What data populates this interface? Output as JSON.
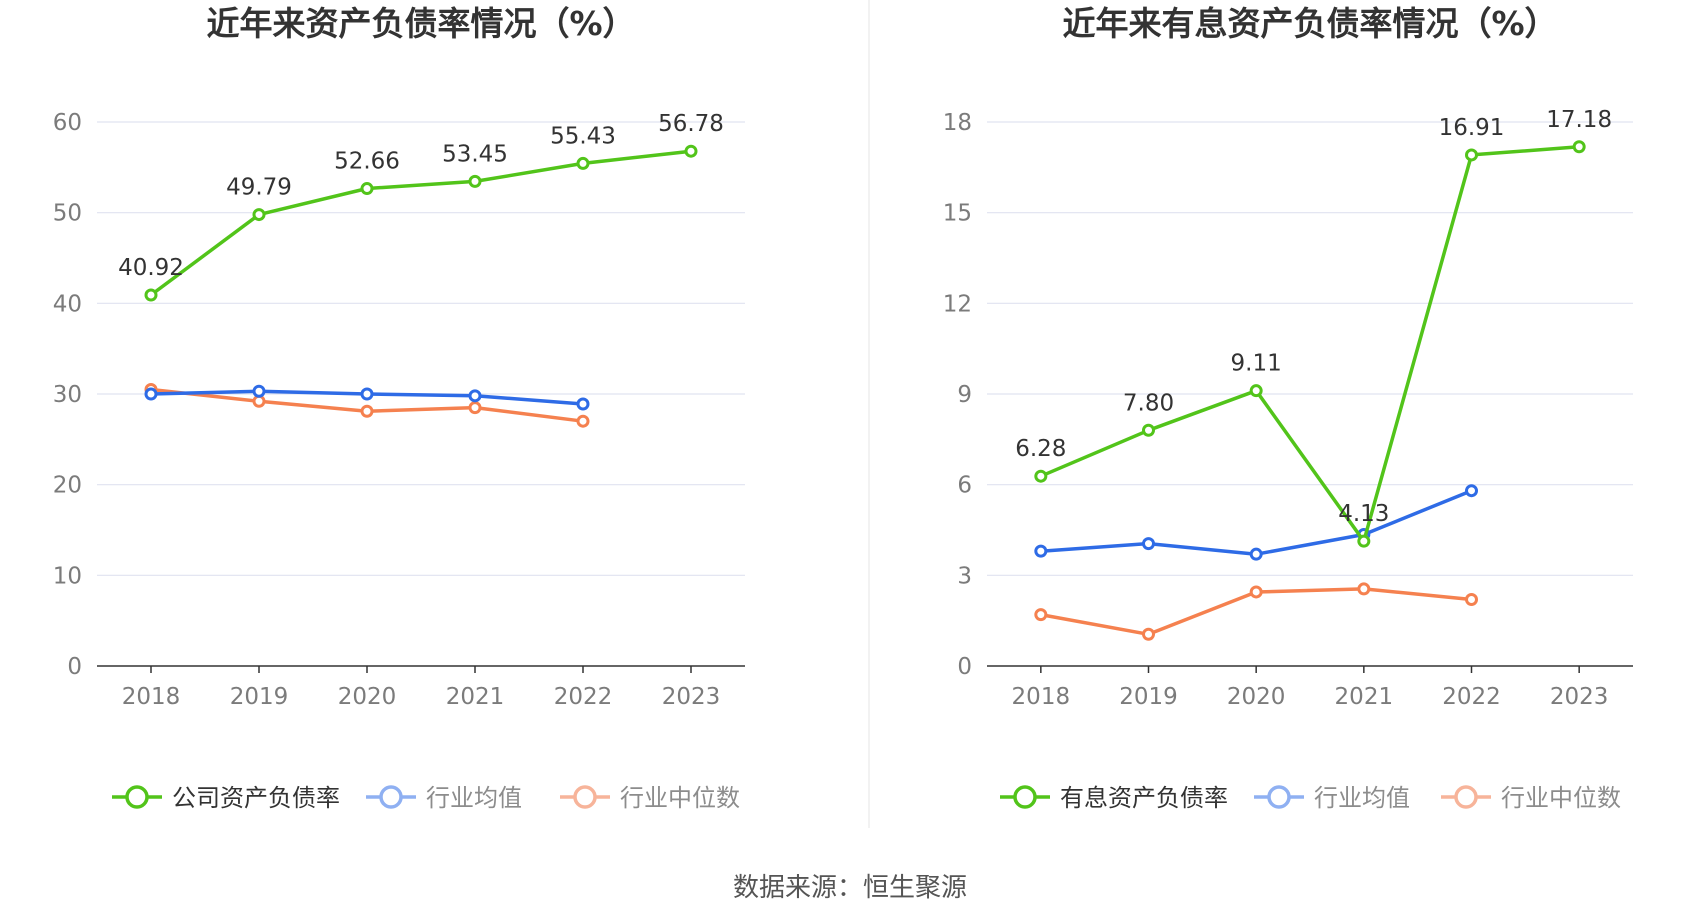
{
  "source": "数据来源：恒生聚源",
  "chart_data": [
    {
      "type": "line",
      "title": "近年来资产负债率情况（%）",
      "x": [
        "2018",
        "2019",
        "2020",
        "2021",
        "2022",
        "2023"
      ],
      "ylim": [
        0,
        60
      ],
      "yticks": [
        0,
        10,
        20,
        30,
        40,
        50,
        60
      ],
      "grid": true,
      "legend_position": "bottom",
      "series": [
        {
          "name": "公司资产负债率",
          "color": "#52c41a",
          "values": [
            40.92,
            49.79,
            52.66,
            53.45,
            55.43,
            56.78
          ],
          "labels": [
            "40.92",
            "49.79",
            "52.66",
            "53.45",
            "55.43",
            "56.78"
          ]
        },
        {
          "name": "行业均值",
          "color": "#2e6be6",
          "values": [
            30.0,
            30.3,
            30.0,
            29.8,
            28.9,
            null
          ]
        },
        {
          "name": "行业中位数",
          "color": "#f5814f",
          "values": [
            30.5,
            29.2,
            28.1,
            28.5,
            27.0,
            null
          ]
        }
      ]
    },
    {
      "type": "line",
      "title": "近年来有息资产负债率情况（%）",
      "x": [
        "2018",
        "2019",
        "2020",
        "2021",
        "2022",
        "2023"
      ],
      "ylim": [
        0,
        18
      ],
      "yticks": [
        0,
        3,
        6,
        9,
        12,
        15,
        18
      ],
      "grid": true,
      "legend_position": "bottom",
      "series": [
        {
          "name": "有息资产负债率",
          "color": "#52c41a",
          "values": [
            6.28,
            7.8,
            9.11,
            4.13,
            16.91,
            17.18
          ],
          "labels": [
            "6.28",
            "7.80",
            "9.11",
            "4.13",
            "16.91",
            "17.18"
          ]
        },
        {
          "name": "行业均值",
          "color": "#2e6be6",
          "values": [
            3.8,
            4.05,
            3.7,
            4.35,
            5.8,
            null
          ]
        },
        {
          "name": "行业中位数",
          "color": "#f5814f",
          "values": [
            1.7,
            1.05,
            2.45,
            2.55,
            2.2,
            null
          ]
        }
      ]
    }
  ]
}
